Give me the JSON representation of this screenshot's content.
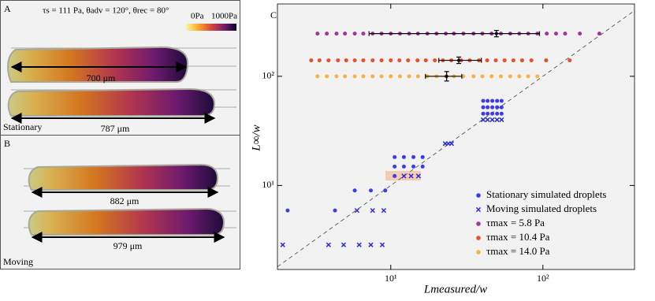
{
  "panels": {
    "a": {
      "letter": "A",
      "params": "τs = 111 Pa, θadv = 120°, θrec = 80°",
      "colorbar_min": "0Pa",
      "colorbar_max": "1000Pa",
      "lengths": [
        "700 μm",
        "787 μm"
      ],
      "label": "Stationary"
    },
    "b": {
      "letter": "B",
      "lengths": [
        "882 μm",
        "979 μm"
      ],
      "label": "Moving"
    }
  },
  "chart_data": {
    "type": "scatter",
    "panel": "C",
    "xlabel": "Lmeasured/w",
    "ylabel": "L∞/w",
    "xscale": "log",
    "yscale": "log",
    "xlim": [
      1.8,
      400
    ],
    "ylim": [
      1.7,
      460
    ],
    "xticks": [
      {
        "value": 10,
        "label": "10¹"
      },
      {
        "value": 100,
        "label": "10²"
      }
    ],
    "yticks": [
      {
        "value": 10,
        "label": "10¹"
      },
      {
        "value": 100,
        "label": "10²"
      }
    ],
    "legend": "lower right",
    "series": [
      {
        "name": "Stationary simulated droplets",
        "color": "#3b3be8",
        "marker": "circle",
        "x": [
          2.1,
          4.3,
          5.8,
          7.4,
          9.2,
          10.6,
          12.2,
          14.1,
          16.2,
          10.6,
          12.2,
          14.1,
          16.2,
          10.6,
          40.5,
          43.3,
          46.5,
          50,
          53.5,
          40.5,
          43.3,
          46.5,
          50,
          53.5,
          40.5,
          43.3,
          46.5,
          50,
          53.5
        ],
        "values": [
          5.9,
          5.9,
          9,
          9,
          9,
          18.2,
          18.2,
          18.2,
          18.2,
          14.9,
          14.9,
          14.9,
          14.9,
          12.2,
          59.6,
          59.6,
          59.6,
          59.6,
          59.6,
          52,
          52,
          52,
          52,
          52,
          45.5,
          45.5,
          45.5,
          45.5,
          45.5
        ]
      },
      {
        "name": "Moving simulated droplets",
        "color": "#2b2bd0",
        "marker": "x",
        "x": [
          1.95,
          3.9,
          4.9,
          6.2,
          7.4,
          8.8,
          6.0,
          7.6,
          9.0,
          12.2,
          13.6,
          15.2,
          22.8,
          23.9,
          25.1,
          40.5,
          43.3,
          46.5,
          50,
          53.5
        ],
        "values": [
          2.86,
          2.86,
          2.86,
          2.86,
          2.86,
          2.86,
          5.9,
          5.9,
          5.9,
          12.2,
          12.2,
          12.2,
          24.2,
          24.2,
          24.2,
          40,
          40,
          40,
          40,
          40
        ]
      },
      {
        "name": "τmax = 5.8 Pa",
        "color": "#a0359a",
        "marker": "circle",
        "x": [
          3.3,
          3.8,
          4.4,
          5.0,
          5.8,
          6.6,
          7.6,
          8.7,
          10,
          11.5,
          13.2,
          15.1,
          17.4,
          20,
          23,
          26,
          30,
          35,
          40,
          46,
          53,
          61,
          70,
          80,
          92,
          106,
          122,
          140,
          175,
          235
        ],
        "values": [
          246,
          246,
          246,
          246,
          246,
          246,
          246,
          246,
          246,
          246,
          246,
          246,
          246,
          246,
          246,
          246,
          246,
          246,
          246,
          246,
          246,
          246,
          246,
          246,
          246,
          246,
          246,
          246,
          246,
          246
        ],
        "errorbar": {
          "x": 49.5,
          "y": 246,
          "xmin": 7.2,
          "xmax": 95,
          "ymin": 230,
          "ymax": 263
        }
      },
      {
        "name": "τmax = 10.4 Pa",
        "color": "#e4512a",
        "marker": "circle",
        "x": [
          3.0,
          3.4,
          3.9,
          4.5,
          5.1,
          5.8,
          6.6,
          7.6,
          8.7,
          10,
          11.4,
          13,
          15,
          17,
          19.5,
          22,
          25,
          29,
          33,
          38,
          43,
          49,
          56,
          64,
          73,
          84,
          105,
          150
        ],
        "values": [
          140,
          140,
          140,
          140,
          140,
          140,
          140,
          140,
          140,
          140,
          140,
          140,
          140,
          140,
          140,
          140,
          140,
          140,
          140,
          140,
          140,
          140,
          140,
          140,
          140,
          140,
          140,
          140
        ],
        "errorbar": {
          "x": 28,
          "y": 140,
          "xmin": 20.7,
          "xmax": 39.4,
          "ymin": 131,
          "ymax": 150
        }
      },
      {
        "name": "τmax = 14.0 Pa",
        "color": "#f6b445",
        "marker": "circle",
        "x": [
          3.3,
          3.8,
          4.4,
          5.0,
          5.8,
          6.6,
          7.6,
          8.7,
          10,
          11.5,
          13.2,
          15.1,
          17.4,
          20,
          23,
          26,
          30,
          35,
          40,
          46,
          53,
          61,
          70,
          80,
          92
        ],
        "values": [
          100,
          100,
          100,
          100,
          100,
          100,
          100,
          100,
          100,
          100,
          100,
          100,
          100,
          100,
          100,
          100,
          100,
          100,
          100,
          100,
          100,
          100,
          100,
          100,
          100
        ],
        "errorbar": {
          "x": 23.3,
          "y": 100,
          "xmin": 16.9,
          "xmax": 29.3,
          "ymin": 90.5,
          "ymax": 110.5
        }
      }
    ]
  }
}
